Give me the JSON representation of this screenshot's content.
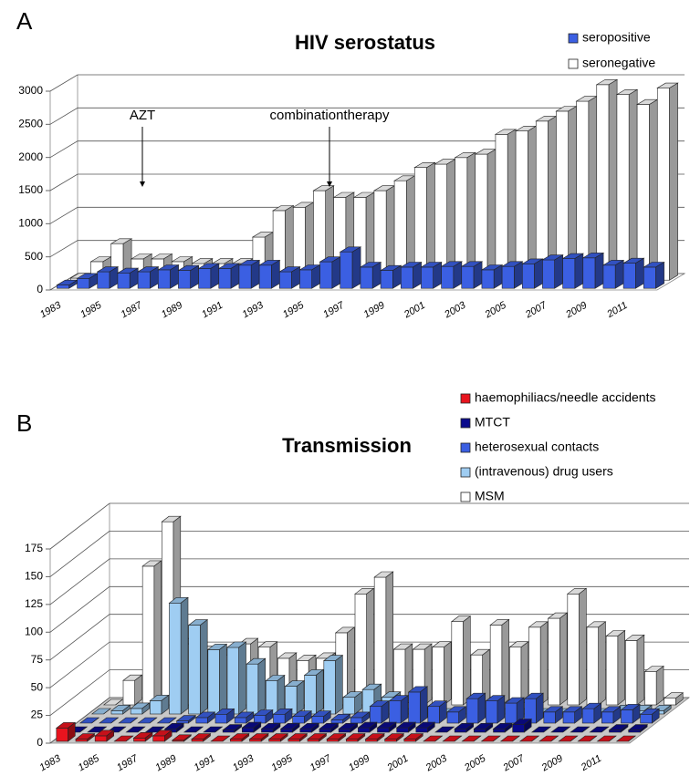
{
  "chart_data": [
    {
      "type": "bar3d",
      "panel": "A",
      "title": "HIV serostatus",
      "annotations": [
        "AZT",
        "combinationtherapy"
      ],
      "categories": [
        "1983",
        null,
        "1985",
        null,
        "1987",
        null,
        "1989",
        null,
        "1991",
        null,
        "1993",
        null,
        "1995",
        null,
        "1997",
        null,
        "1999",
        null,
        "2001",
        null,
        "2003",
        null,
        "2005",
        null,
        "2007",
        null,
        "2009",
        null,
        "2011",
        null
      ],
      "series": [
        {
          "name": "seropositive",
          "color": "#3b5fe2",
          "values": [
            50,
            150,
            250,
            230,
            250,
            280,
            270,
            300,
            300,
            350,
            350,
            250,
            280,
            400,
            550,
            320,
            270,
            320,
            320,
            330,
            330,
            280,
            330,
            370,
            430,
            450,
            460,
            350,
            380,
            320
          ]
        },
        {
          "name": "seronegative",
          "color": "#ffffff",
          "values": [
            30,
            280,
            550,
            320,
            320,
            280,
            250,
            250,
            250,
            650,
            1050,
            1100,
            1350,
            1250,
            1250,
            1350,
            1500,
            1700,
            1750,
            1850,
            1900,
            2200,
            2250,
            2400,
            2550,
            2700,
            2950,
            2800,
            2650,
            2900
          ]
        }
      ],
      "ylim": [
        0,
        3000
      ],
      "yticks": [
        0,
        500,
        1000,
        1500,
        2000,
        2500,
        3000
      ],
      "grid": true
    },
    {
      "type": "bar3d",
      "panel": "B",
      "title": "Transmission",
      "categories": [
        "1983",
        null,
        "1985",
        null,
        "1987",
        null,
        "1989",
        null,
        "1991",
        null,
        "1993",
        null,
        "1995",
        null,
        "1997",
        null,
        "1999",
        null,
        "2001",
        null,
        "2003",
        null,
        "2005",
        null,
        "2007",
        null,
        "2009",
        null,
        "2011",
        null
      ],
      "series": [
        {
          "name": "haemophiliacs/needle accidents",
          "color": "#e8141e",
          "values": [
            12,
            2,
            5,
            0,
            3,
            5,
            1,
            2,
            0,
            2,
            2,
            2,
            2,
            2,
            2,
            2,
            2,
            2,
            2,
            0,
            0,
            0,
            0,
            0,
            0,
            0,
            0,
            0,
            0,
            0
          ]
        },
        {
          "name": "MTCT",
          "color": "#0a0a8c",
          "values": [
            0,
            0,
            0,
            0,
            0,
            3,
            0,
            0,
            2,
            4,
            3,
            3,
            3,
            3,
            3,
            4,
            4,
            4,
            4,
            0,
            3,
            3,
            3,
            7,
            0,
            0,
            0,
            0,
            2,
            2
          ]
        },
        {
          "name": "heterosexual contacts",
          "color": "#3b5fe2",
          "values": [
            0,
            0,
            0,
            0,
            0,
            2,
            5,
            8,
            5,
            7,
            8,
            6,
            6,
            3,
            5,
            15,
            20,
            28,
            15,
            10,
            22,
            20,
            18,
            22,
            10,
            10,
            13,
            10,
            12,
            8
          ]
        },
        {
          "name": "(intravenous) drug users",
          "color": "#9fcdf2",
          "values": [
            0,
            3,
            5,
            12,
            100,
            80,
            58,
            60,
            45,
            30,
            25,
            35,
            48,
            15,
            22,
            15,
            0,
            0,
            0,
            0,
            0,
            0,
            0,
            0,
            0,
            0,
            0,
            3,
            3,
            3
          ]
        },
        {
          "name": "MSM",
          "color": "#ffffff",
          "values": [
            0,
            22,
            125,
            165,
            55,
            48,
            45,
            55,
            52,
            42,
            40,
            42,
            65,
            100,
            115,
            50,
            50,
            52,
            75,
            45,
            72,
            52,
            70,
            78,
            100,
            70,
            62,
            58,
            30,
            6
          ]
        }
      ],
      "ylim": [
        0,
        175
      ],
      "yticks": [
        0,
        25,
        50,
        75,
        100,
        125,
        150,
        175
      ],
      "grid": true
    }
  ]
}
